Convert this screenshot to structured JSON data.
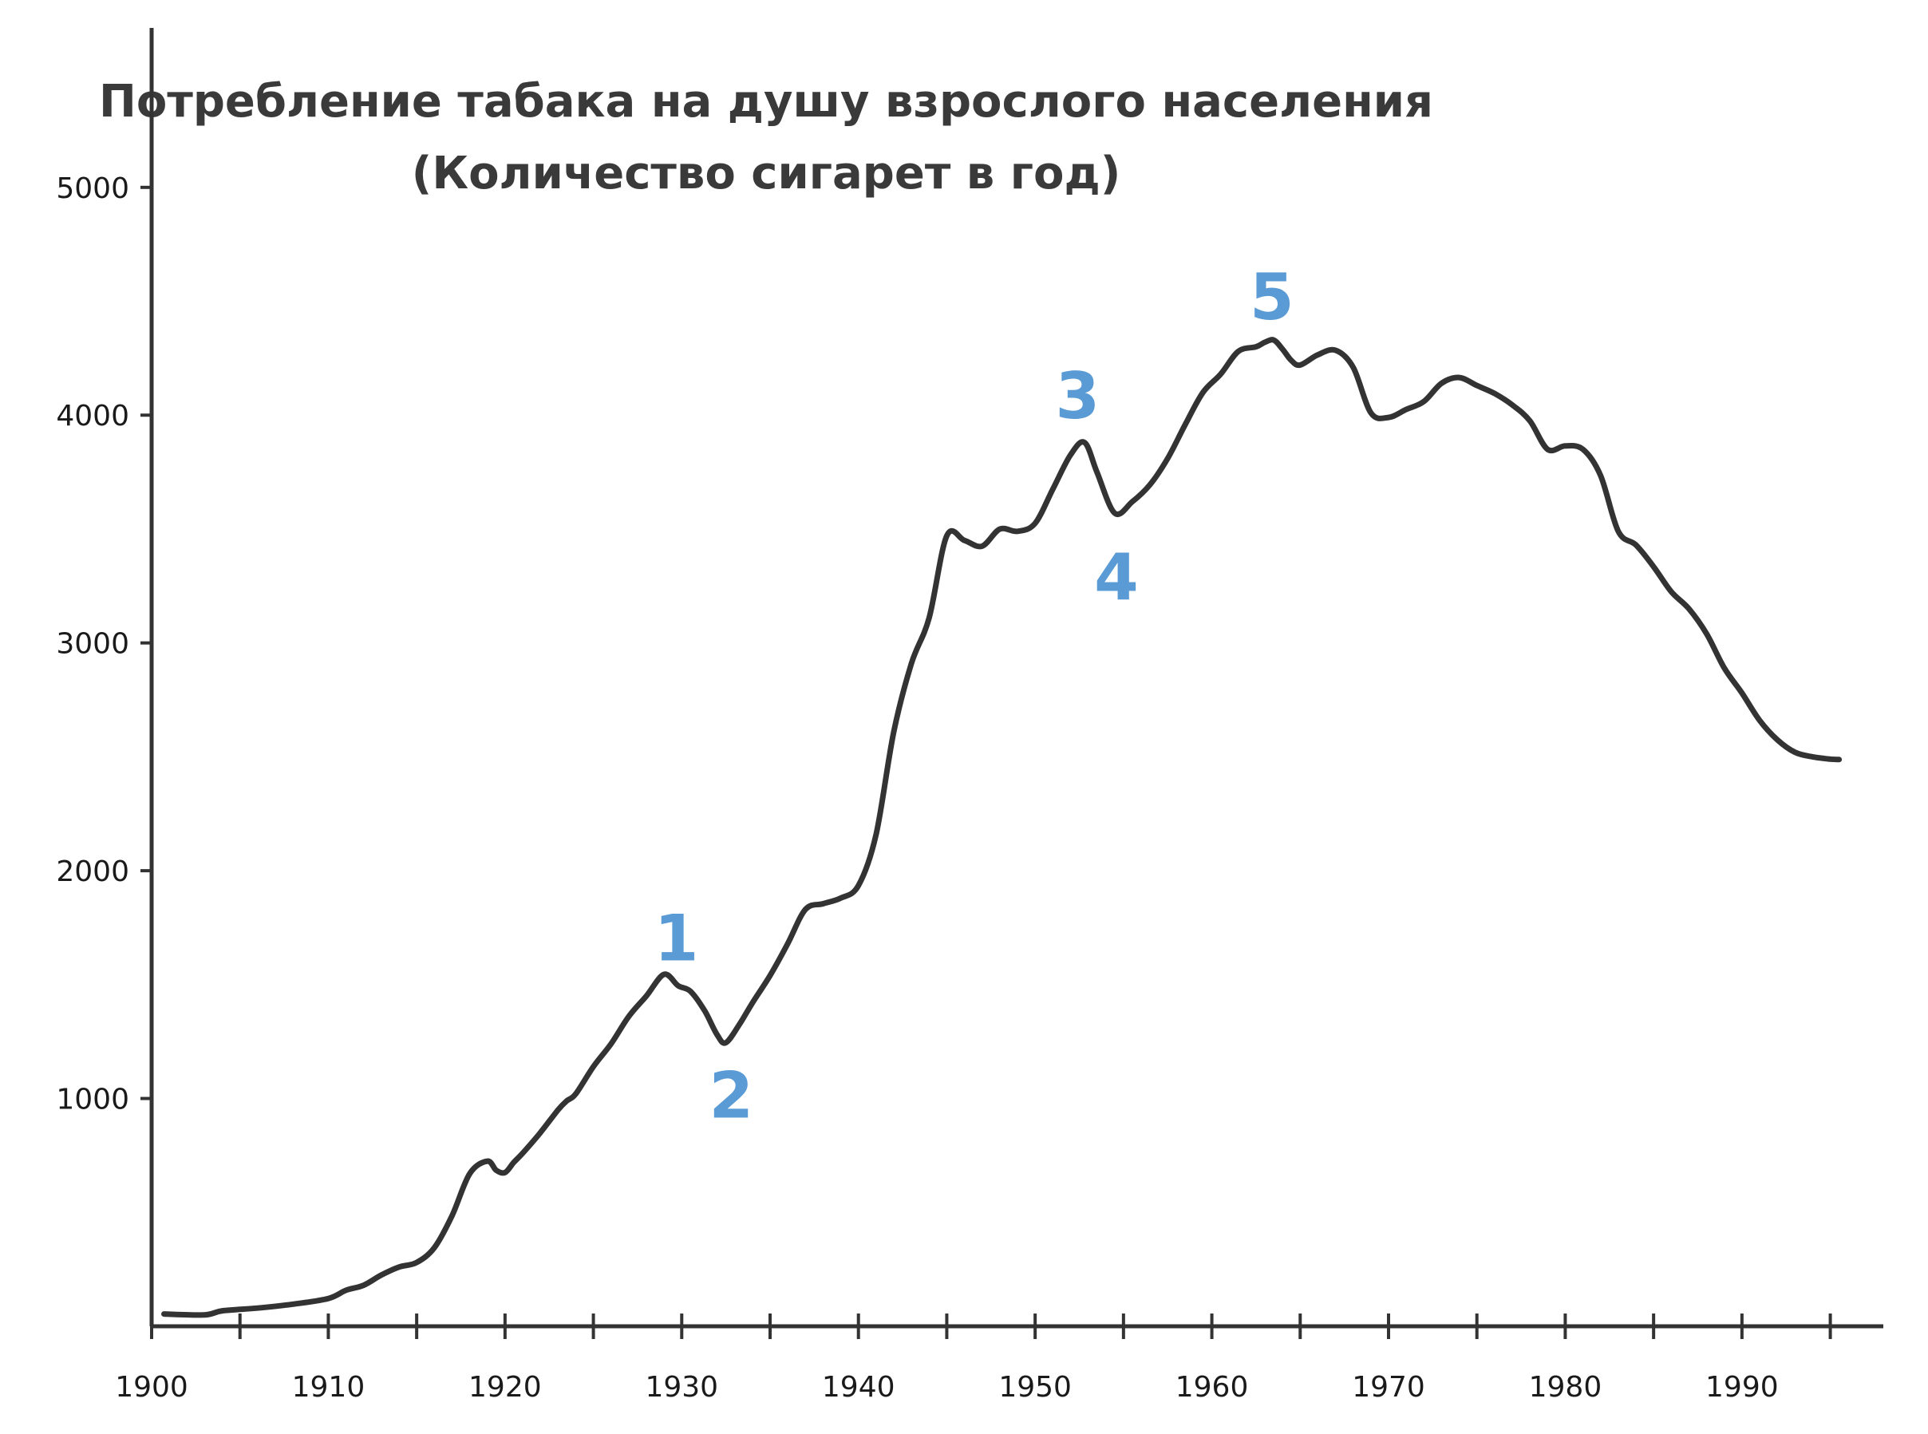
{
  "chart_data": {
    "type": "line",
    "title_lines": [
      "Потребление табака на душу взрослого населения",
      "(Количество сигарет в год)"
    ],
    "xlabel": "",
    "ylabel": "",
    "xlim": [
      1900,
      1998
    ],
    "ylim": [
      0,
      5700
    ],
    "x_ticks": [
      1900,
      1910,
      1920,
      1930,
      1940,
      1950,
      1960,
      1970,
      1980,
      1990
    ],
    "x_minor_ticks": [
      1905,
      1915,
      1925,
      1935,
      1945,
      1955,
      1965,
      1975,
      1985,
      1995
    ],
    "y_ticks": [
      1000,
      2000,
      3000,
      4000,
      5000
    ],
    "grid": false,
    "line_color": "#333333",
    "annotation_color": "#5b9bd5",
    "series": [
      {
        "x": [
          1900.7,
          1903,
          1904,
          1906,
          1908,
          1910,
          1911,
          1912,
          1913,
          1914,
          1915,
          1916,
          1917,
          1918,
          1919,
          1919.5,
          1920,
          1920.5,
          1921,
          1922,
          1923,
          1923.5,
          1924,
          1925,
          1926,
          1927,
          1928,
          1929,
          1929.8,
          1930.5,
          1931.3,
          1932,
          1932.5,
          1933.3,
          1934,
          1935,
          1936,
          1937,
          1938,
          1939,
          1940,
          1941,
          1942,
          1943,
          1944,
          1945,
          1946,
          1947,
          1948,
          1949,
          1950,
          1951,
          1952,
          1952.8,
          1953.5,
          1954.5,
          1955.5,
          1956.5,
          1957.5,
          1958.5,
          1959.5,
          1960.5,
          1961.5,
          1962.5,
          1963,
          1963.5,
          1964,
          1964.5,
          1965,
          1966,
          1967,
          1968,
          1969,
          1970,
          1971,
          1972,
          1973,
          1974,
          1975,
          1976,
          1977,
          1978,
          1979,
          1980,
          1981,
          1982,
          1983,
          1984,
          1985,
          1986,
          1987,
          1988,
          1989,
          1990,
          1991,
          1992,
          1993,
          1994,
          1995,
          1995.5
        ],
        "y": [
          54,
          50,
          68,
          80,
          97,
          122,
          158,
          180,
          225,
          260,
          280,
          345,
          485,
          670,
          725,
          685,
          675,
          720,
          760,
          850,
          950,
          990,
          1020,
          1140,
          1240,
          1360,
          1450,
          1545,
          1495,
          1470,
          1385,
          1280,
          1245,
          1330,
          1420,
          1540,
          1680,
          1830,
          1855,
          1880,
          1935,
          2160,
          2610,
          2910,
          3110,
          3470,
          3450,
          3425,
          3500,
          3490,
          3525,
          3675,
          3825,
          3880,
          3750,
          3570,
          3620,
          3695,
          3810,
          3960,
          4100,
          4180,
          4280,
          4300,
          4320,
          4330,
          4290,
          4240,
          4220,
          4265,
          4285,
          4210,
          4010,
          3990,
          4025,
          4060,
          4140,
          4165,
          4130,
          4095,
          4045,
          3975,
          3850,
          3865,
          3850,
          3735,
          3490,
          3430,
          3335,
          3225,
          3150,
          3040,
          2890,
          2780,
          2660,
          2575,
          2520,
          2500,
          2490,
          2488
        ]
      }
    ],
    "annotations": [
      {
        "text": "1",
        "x": 1929.7,
        "y": 1705
      },
      {
        "text": "2",
        "x": 1932.8,
        "y": 1015
      },
      {
        "text": "3",
        "x": 1952.4,
        "y": 4085
      },
      {
        "text": "4",
        "x": 1954.6,
        "y": 3290
      },
      {
        "text": "5",
        "x": 1963.4,
        "y": 4520
      }
    ]
  }
}
